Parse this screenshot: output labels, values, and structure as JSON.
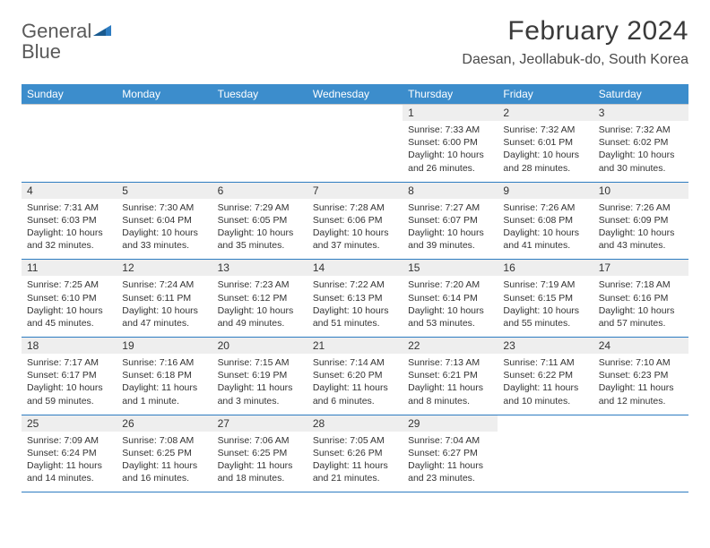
{
  "brand": {
    "name_part1": "General",
    "name_part2": "Blue"
  },
  "header": {
    "month_title": "February 2024",
    "location": "Daesan, Jeollabuk-do, South Korea"
  },
  "colors": {
    "header_bg": "#3c8dcc",
    "header_text": "#ffffff",
    "daynum_bg": "#eeeeee",
    "row_divider": "#2d7cc1",
    "body_text": "#333333",
    "logo_gray": "#5a5a5a",
    "logo_blue": "#2d7cc1"
  },
  "typography": {
    "title_fontsize": 30,
    "location_fontsize": 16,
    "dayheader_fontsize": 12,
    "daynum_fontsize": 12,
    "cell_fontsize": 10.5
  },
  "calendar": {
    "day_headers": [
      "Sunday",
      "Monday",
      "Tuesday",
      "Wednesday",
      "Thursday",
      "Friday",
      "Saturday"
    ],
    "weeks": [
      [
        null,
        null,
        null,
        null,
        {
          "n": "1",
          "sr": "Sunrise: 7:33 AM",
          "ss": "Sunset: 6:00 PM",
          "dl": "Daylight: 10 hours and 26 minutes."
        },
        {
          "n": "2",
          "sr": "Sunrise: 7:32 AM",
          "ss": "Sunset: 6:01 PM",
          "dl": "Daylight: 10 hours and 28 minutes."
        },
        {
          "n": "3",
          "sr": "Sunrise: 7:32 AM",
          "ss": "Sunset: 6:02 PM",
          "dl": "Daylight: 10 hours and 30 minutes."
        }
      ],
      [
        {
          "n": "4",
          "sr": "Sunrise: 7:31 AM",
          "ss": "Sunset: 6:03 PM",
          "dl": "Daylight: 10 hours and 32 minutes."
        },
        {
          "n": "5",
          "sr": "Sunrise: 7:30 AM",
          "ss": "Sunset: 6:04 PM",
          "dl": "Daylight: 10 hours and 33 minutes."
        },
        {
          "n": "6",
          "sr": "Sunrise: 7:29 AM",
          "ss": "Sunset: 6:05 PM",
          "dl": "Daylight: 10 hours and 35 minutes."
        },
        {
          "n": "7",
          "sr": "Sunrise: 7:28 AM",
          "ss": "Sunset: 6:06 PM",
          "dl": "Daylight: 10 hours and 37 minutes."
        },
        {
          "n": "8",
          "sr": "Sunrise: 7:27 AM",
          "ss": "Sunset: 6:07 PM",
          "dl": "Daylight: 10 hours and 39 minutes."
        },
        {
          "n": "9",
          "sr": "Sunrise: 7:26 AM",
          "ss": "Sunset: 6:08 PM",
          "dl": "Daylight: 10 hours and 41 minutes."
        },
        {
          "n": "10",
          "sr": "Sunrise: 7:26 AM",
          "ss": "Sunset: 6:09 PM",
          "dl": "Daylight: 10 hours and 43 minutes."
        }
      ],
      [
        {
          "n": "11",
          "sr": "Sunrise: 7:25 AM",
          "ss": "Sunset: 6:10 PM",
          "dl": "Daylight: 10 hours and 45 minutes."
        },
        {
          "n": "12",
          "sr": "Sunrise: 7:24 AM",
          "ss": "Sunset: 6:11 PM",
          "dl": "Daylight: 10 hours and 47 minutes."
        },
        {
          "n": "13",
          "sr": "Sunrise: 7:23 AM",
          "ss": "Sunset: 6:12 PM",
          "dl": "Daylight: 10 hours and 49 minutes."
        },
        {
          "n": "14",
          "sr": "Sunrise: 7:22 AM",
          "ss": "Sunset: 6:13 PM",
          "dl": "Daylight: 10 hours and 51 minutes."
        },
        {
          "n": "15",
          "sr": "Sunrise: 7:20 AM",
          "ss": "Sunset: 6:14 PM",
          "dl": "Daylight: 10 hours and 53 minutes."
        },
        {
          "n": "16",
          "sr": "Sunrise: 7:19 AM",
          "ss": "Sunset: 6:15 PM",
          "dl": "Daylight: 10 hours and 55 minutes."
        },
        {
          "n": "17",
          "sr": "Sunrise: 7:18 AM",
          "ss": "Sunset: 6:16 PM",
          "dl": "Daylight: 10 hours and 57 minutes."
        }
      ],
      [
        {
          "n": "18",
          "sr": "Sunrise: 7:17 AM",
          "ss": "Sunset: 6:17 PM",
          "dl": "Daylight: 10 hours and 59 minutes."
        },
        {
          "n": "19",
          "sr": "Sunrise: 7:16 AM",
          "ss": "Sunset: 6:18 PM",
          "dl": "Daylight: 11 hours and 1 minute."
        },
        {
          "n": "20",
          "sr": "Sunrise: 7:15 AM",
          "ss": "Sunset: 6:19 PM",
          "dl": "Daylight: 11 hours and 3 minutes."
        },
        {
          "n": "21",
          "sr": "Sunrise: 7:14 AM",
          "ss": "Sunset: 6:20 PM",
          "dl": "Daylight: 11 hours and 6 minutes."
        },
        {
          "n": "22",
          "sr": "Sunrise: 7:13 AM",
          "ss": "Sunset: 6:21 PM",
          "dl": "Daylight: 11 hours and 8 minutes."
        },
        {
          "n": "23",
          "sr": "Sunrise: 7:11 AM",
          "ss": "Sunset: 6:22 PM",
          "dl": "Daylight: 11 hours and 10 minutes."
        },
        {
          "n": "24",
          "sr": "Sunrise: 7:10 AM",
          "ss": "Sunset: 6:23 PM",
          "dl": "Daylight: 11 hours and 12 minutes."
        }
      ],
      [
        {
          "n": "25",
          "sr": "Sunrise: 7:09 AM",
          "ss": "Sunset: 6:24 PM",
          "dl": "Daylight: 11 hours and 14 minutes."
        },
        {
          "n": "26",
          "sr": "Sunrise: 7:08 AM",
          "ss": "Sunset: 6:25 PM",
          "dl": "Daylight: 11 hours and 16 minutes."
        },
        {
          "n": "27",
          "sr": "Sunrise: 7:06 AM",
          "ss": "Sunset: 6:25 PM",
          "dl": "Daylight: 11 hours and 18 minutes."
        },
        {
          "n": "28",
          "sr": "Sunrise: 7:05 AM",
          "ss": "Sunset: 6:26 PM",
          "dl": "Daylight: 11 hours and 21 minutes."
        },
        {
          "n": "29",
          "sr": "Sunrise: 7:04 AM",
          "ss": "Sunset: 6:27 PM",
          "dl": "Daylight: 11 hours and 23 minutes."
        },
        null,
        null
      ]
    ]
  }
}
